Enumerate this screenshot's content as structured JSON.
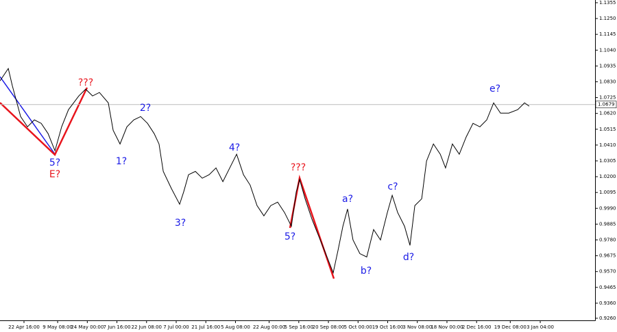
{
  "chart_data": {
    "type": "line",
    "series": [
      {
        "color": "#000000",
        "x": [
          -7.2,
          -3.1,
          -1.1,
          3.0,
          6.4,
          9.8,
          13.2,
          16.6,
          20.0,
          23.3,
          26.7,
          31.8,
          35.2,
          38.6,
          42.0,
          46.4,
          48.8,
          52.2,
          55.6,
          59.0,
          62.4,
          65.8,
          69.1,
          71.5,
          73.6,
          77.6,
          81.7,
          83.7,
          86.1,
          89.5,
          92.9,
          96.3,
          99.7,
          103.1,
          106.5,
          109.9,
          113.3,
          116.6,
          120.0,
          123.4,
          126.8,
          130.2,
          133.6,
          137.0,
          139.4,
          141.1,
          143.8,
          147.2,
          150.6,
          154.0,
          157.7,
          160.1,
          162.5,
          164.8,
          167.5,
          170.9,
          174.3,
          177.7,
          181.1,
          184.5,
          186.9,
          189.6,
          193.0,
          195.7,
          198.1,
          201.5,
          203.9,
          207.3,
          210.7,
          213.3,
          216.7,
          220.1,
          223.5,
          226.9,
          230.3,
          233.7,
          237.1,
          240.5,
          244.6,
          249.0,
          252.4,
          254.7
        ],
        "values": [
          1.0836,
          1.0918,
          1.0804,
          1.0599,
          1.0531,
          1.0577,
          1.0554,
          1.0486,
          1.0372,
          1.0531,
          1.0645,
          1.0736,
          1.0781,
          1.0736,
          1.0759,
          1.069,
          1.0508,
          1.0417,
          1.0531,
          1.0577,
          1.0599,
          1.0554,
          1.0486,
          1.0417,
          1.0235,
          1.0122,
          1.0017,
          1.0099,
          1.0213,
          1.0235,
          1.019,
          1.0213,
          1.0258,
          1.0167,
          1.0258,
          1.0349,
          1.0213,
          1.0144,
          1.0008,
          0.994,
          1.0008,
          1.0031,
          0.9962,
          0.9871,
          1.0099,
          1.0181,
          1.0053,
          0.9917,
          0.9803,
          0.9689,
          0.9562,
          0.9712,
          0.9871,
          0.9985,
          0.978,
          0.9689,
          0.9667,
          0.9849,
          0.978,
          0.9962,
          1.0076,
          0.9962,
          0.9871,
          0.9744,
          1.0008,
          1.0053,
          1.0304,
          1.0417,
          1.0349,
          1.0258,
          1.0417,
          1.0349,
          1.0463,
          1.0554,
          1.0531,
          1.0577,
          1.069,
          1.0622,
          1.0622,
          1.0645,
          1.069,
          1.0668
        ]
      }
    ],
    "xlim": [
      -7.2,
      287.3
    ],
    "xticks": [
      {
        "value": 4.67,
        "label": "22 Apr 16:00"
      },
      {
        "value": 21.33,
        "label": "9 May 08:00"
      },
      {
        "value": 36,
        "label": "24 May 00:00"
      },
      {
        "value": 50.67,
        "label": "7 Jun 16:00"
      },
      {
        "value": 65.33,
        "label": "22 Jun 08:00"
      },
      {
        "value": 80,
        "label": "7 Jul 00:00"
      },
      {
        "value": 94.67,
        "label": "21 Jul 16:00"
      },
      {
        "value": 109.33,
        "label": "5 Aug 08:00"
      },
      {
        "value": 126,
        "label": "22 Aug 00:00"
      },
      {
        "value": 140.67,
        "label": "5 Sep 16:00"
      },
      {
        "value": 155.33,
        "label": "20 Sep 08:00"
      },
      {
        "value": 170,
        "label": "5 Oct 00:00"
      },
      {
        "value": 184.67,
        "label": "19 Oct 16:00"
      },
      {
        "value": 199.33,
        "label": "3 Nov 08:00"
      },
      {
        "value": 214,
        "label": "18 Nov 00:00"
      },
      {
        "value": 228.67,
        "label": "2 Dec 16:00"
      },
      {
        "value": 245.33,
        "label": "19 Dec 08:00"
      },
      {
        "value": 260.17,
        "label": "3 Jan 04:00"
      }
    ],
    "ylim": [
      0.9246,
      1.1373
    ],
    "yticks": [
      1.1355,
      {
        "value": 1.125,
        "label": "1.1250"
      },
      1.1145,
      {
        "value": 1.104,
        "label": "1.1040"
      },
      1.0935,
      {
        "value": 1.083,
        "label": "1.0830"
      },
      1.0725,
      {
        "value": 1.062,
        "label": "1.0620"
      },
      1.0515,
      {
        "value": 1.041,
        "label": "1.0410"
      },
      1.0305,
      {
        "value": 1.02,
        "label": "1.0200"
      },
      1.0095,
      {
        "value": 0.999,
        "label": "0.9990"
      },
      0.9885,
      {
        "value": 0.978,
        "label": "0.9780"
      },
      0.9675,
      {
        "value": 0.957,
        "label": "0.9570"
      },
      0.9465,
      {
        "value": 0.936,
        "label": "0.9360"
      },
      {
        "value": 0.926,
        "label": "0.9260"
      }
    ],
    "last_price": 1.0679,
    "annotations": [
      {
        "text": "???",
        "color": "#e8141c"
      },
      {
        "text": "5?",
        "color": "#1a1ae6"
      },
      {
        "text": "E?",
        "color": "#e8141c"
      },
      {
        "text": "1?",
        "color": "#1a1ae6"
      },
      {
        "text": "2?",
        "color": "#1a1ae6"
      },
      {
        "text": "3?",
        "color": "#1a1ae6"
      },
      {
        "text": "4?",
        "color": "#1a1ae6"
      },
      {
        "text": "???",
        "color": "#e8141c"
      },
      {
        "text": "5?",
        "color": "#1a1ae6"
      },
      {
        "text": "a?",
        "color": "#1a1ae6"
      },
      {
        "text": "b?",
        "color": "#1a1ae6"
      },
      {
        "text": "c?",
        "color": "#1a1ae6"
      },
      {
        "text": "d?",
        "color": "#1a1ae6"
      },
      {
        "text": "e?",
        "color": "#1a1ae6"
      }
    ]
  }
}
